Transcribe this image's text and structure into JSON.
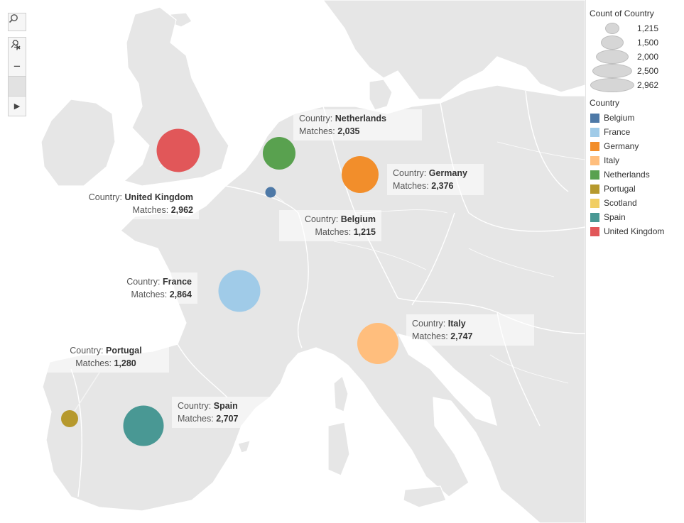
{
  "map": {
    "toolbar": {
      "search_icon": "search-icon",
      "zoom_in_label": "+",
      "zoom_out_label": "−",
      "pin_icon": "pin-icon",
      "play_label": "▶"
    },
    "points": [
      {
        "key": "uk",
        "name": "United Kingdom",
        "matches": "2,962",
        "color": "#e15759"
      },
      {
        "key": "nl",
        "name": "Netherlands",
        "matches": "2,035",
        "color": "#59a14f"
      },
      {
        "key": "be",
        "name": "Belgium",
        "matches": "1,215",
        "color": "#4e79a7"
      },
      {
        "key": "de",
        "name": "Germany",
        "matches": "2,376",
        "color": "#f28e2b"
      },
      {
        "key": "fr",
        "name": "France",
        "matches": "2,864",
        "color": "#a0cbe8"
      },
      {
        "key": "it",
        "name": "Italy",
        "matches": "2,747",
        "color": "#ffbe7d"
      },
      {
        "key": "pt",
        "name": "Portugal",
        "matches": "1,280",
        "color": "#b6992d"
      },
      {
        "key": "es",
        "name": "Spain",
        "matches": "2,707",
        "color": "#499894"
      }
    ],
    "tooltip_country_label": "Country:",
    "tooltip_matches_label": "Matches:"
  },
  "legend": {
    "size_title": "Count of Country",
    "sizes": [
      "1,215",
      "1,500",
      "2,000",
      "2,500",
      "2,962"
    ],
    "color_title": "Country",
    "countries": [
      {
        "name": "Belgium",
        "color": "#4e79a7"
      },
      {
        "name": "France",
        "color": "#a0cbe8"
      },
      {
        "name": "Germany",
        "color": "#f28e2b"
      },
      {
        "name": "Italy",
        "color": "#ffbe7d"
      },
      {
        "name": "Netherlands",
        "color": "#59a14f"
      },
      {
        "name": "Portugal",
        "color": "#b6992d"
      },
      {
        "name": "Scotland",
        "color": "#f1ce63"
      },
      {
        "name": "Spain",
        "color": "#499894"
      },
      {
        "name": "United Kingdom",
        "color": "#e15759"
      }
    ]
  }
}
